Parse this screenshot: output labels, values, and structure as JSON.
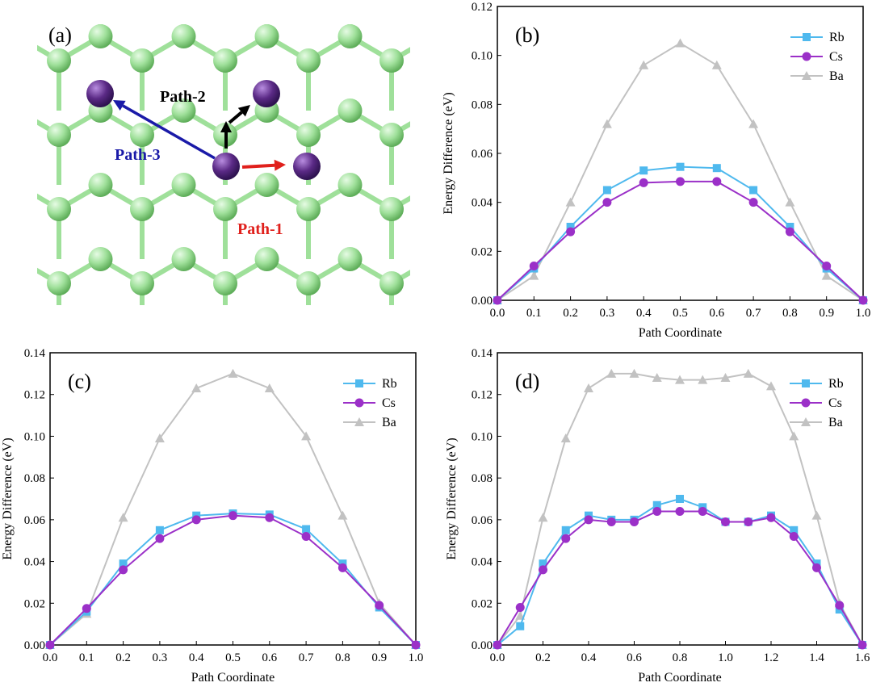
{
  "panel_a": {
    "label": "(a)",
    "path1_label": "Path-1",
    "path2_label": "Path-2",
    "path3_label": "Path-3",
    "colors": {
      "carbon": "#9fe09a",
      "carbon_edge": "#5fae5a",
      "atom": "#5b2a86",
      "path1": "#e0201c",
      "path2": "#000000",
      "path3": "#1a1aa8"
    }
  },
  "series_style": {
    "Rb": {
      "color": "#4fb9ee",
      "marker": "square"
    },
    "Cs": {
      "color": "#9b30c8",
      "marker": "circle"
    },
    "Ba": {
      "color": "#c2c2c2",
      "marker": "triangle"
    }
  },
  "chart_data": [
    {
      "panel": "(b)",
      "type": "line",
      "xlabel": "Path Coordinate",
      "ylabel": "Energy Difference (eV)",
      "xlim": [
        0.0,
        1.0
      ],
      "ylim": [
        0.0,
        0.12
      ],
      "xticks": [
        "0.0",
        "0.1",
        "0.2",
        "0.3",
        "0.4",
        "0.5",
        "0.6",
        "0.7",
        "0.8",
        "0.9",
        "1.0"
      ],
      "yticks": [
        "0.00",
        "0.02",
        "0.04",
        "0.06",
        "0.08",
        "0.10",
        "0.12"
      ],
      "legend": "top-right",
      "x": [
        0.0,
        0.1,
        0.2,
        0.3,
        0.4,
        0.5,
        0.6,
        0.7,
        0.8,
        0.9,
        1.0
      ],
      "series": [
        {
          "name": "Rb",
          "values": [
            0.0,
            0.013,
            0.03,
            0.045,
            0.053,
            0.0545,
            0.054,
            0.045,
            0.03,
            0.013,
            0.0
          ]
        },
        {
          "name": "Cs",
          "values": [
            0.0,
            0.014,
            0.028,
            0.04,
            0.048,
            0.0485,
            0.0485,
            0.04,
            0.028,
            0.014,
            0.0
          ]
        },
        {
          "name": "Ba",
          "values": [
            0.0,
            0.01,
            0.04,
            0.072,
            0.096,
            0.105,
            0.096,
            0.072,
            0.04,
            0.01,
            0.0
          ]
        }
      ]
    },
    {
      "panel": "(c)",
      "type": "line",
      "xlabel": "Path Coordinate",
      "ylabel": "Energy Difference (eV)",
      "xlim": [
        0.0,
        1.0
      ],
      "ylim": [
        0.0,
        0.14
      ],
      "xticks": [
        "0.0",
        "0.1",
        "0.2",
        "0.3",
        "0.4",
        "0.5",
        "0.6",
        "0.7",
        "0.8",
        "0.9",
        "1.0"
      ],
      "yticks": [
        "0.00",
        "0.02",
        "0.04",
        "0.06",
        "0.08",
        "0.10",
        "0.12",
        "0.14"
      ],
      "legend": "top-right",
      "x": [
        0.0,
        0.1,
        0.2,
        0.3,
        0.4,
        0.5,
        0.6,
        0.7,
        0.8,
        0.9,
        1.0
      ],
      "series": [
        {
          "name": "Rb",
          "values": [
            0.0,
            0.016,
            0.039,
            0.055,
            0.062,
            0.063,
            0.0625,
            0.0555,
            0.039,
            0.018,
            0.0
          ]
        },
        {
          "name": "Cs",
          "values": [
            0.0,
            0.0175,
            0.036,
            0.051,
            0.06,
            0.062,
            0.061,
            0.052,
            0.037,
            0.019,
            0.0
          ]
        },
        {
          "name": "Ba",
          "values": [
            0.0,
            0.015,
            0.061,
            0.099,
            0.123,
            0.13,
            0.123,
            0.1,
            0.062,
            0.02,
            0.0
          ]
        }
      ]
    },
    {
      "panel": "(d)",
      "type": "line",
      "xlabel": "Path Coordinate",
      "ylabel": "Energy Difference (eV)",
      "xlim": [
        0.0,
        1.6
      ],
      "ylim": [
        0.0,
        0.14
      ],
      "xticks": [
        "0.0",
        "0.2",
        "0.4",
        "0.6",
        "0.8",
        "1.0",
        "1.2",
        "1.4",
        "1.6"
      ],
      "yticks": [
        "0.00",
        "0.02",
        "0.04",
        "0.06",
        "0.08",
        "0.10",
        "0.12",
        "0.14"
      ],
      "legend": "top-right",
      "x": [
        0.0,
        0.1,
        0.2,
        0.3,
        0.4,
        0.5,
        0.6,
        0.7,
        0.8,
        0.9,
        1.0,
        1.1,
        1.2,
        1.3,
        1.4,
        1.5,
        1.6
      ],
      "series": [
        {
          "name": "Rb",
          "values": [
            0.0,
            0.009,
            0.039,
            0.055,
            0.062,
            0.06,
            0.06,
            0.067,
            0.07,
            0.066,
            0.059,
            0.059,
            0.062,
            0.055,
            0.039,
            0.017,
            0.0
          ]
        },
        {
          "name": "Cs",
          "values": [
            0.0,
            0.018,
            0.036,
            0.051,
            0.06,
            0.059,
            0.059,
            0.064,
            0.064,
            0.064,
            0.059,
            0.059,
            0.061,
            0.052,
            0.037,
            0.019,
            0.0
          ]
        },
        {
          "name": "Ba",
          "values": [
            0.0,
            0.014,
            0.061,
            0.099,
            0.123,
            0.13,
            0.13,
            0.128,
            0.127,
            0.127,
            0.128,
            0.13,
            0.124,
            0.1,
            0.062,
            0.02,
            0.0
          ]
        }
      ]
    }
  ]
}
